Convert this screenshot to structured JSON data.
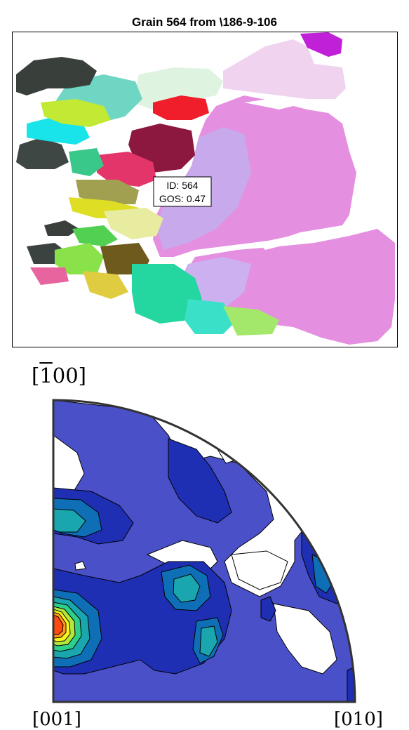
{
  "title": "Grain 564 from \\186-9-106",
  "map": {
    "annotation_id": "ID: 564",
    "annotation_gos": "GOS: 0.47"
  },
  "pole_figure": {
    "label_top": "[̅100]",
    "label_top_display": "[100]",
    "label_bottom_left": "[001]",
    "label_bottom_right": "[010]"
  },
  "colors": {
    "level0": "#ffffff",
    "level1": "#4a50c8",
    "level2": "#1f2fb4",
    "level3": "#0f6fb6",
    "level4": "#1aa6ae",
    "level5": "#2ecf8a",
    "level6": "#b3e83a",
    "level7": "#f7f71b",
    "level8": "#ff9a1a",
    "level9": "#ff4a10"
  },
  "chart_data": [
    {
      "type": "heatmap",
      "title": "Grain 564 from \\186-9-106",
      "description_hidden": true,
      "annotations": [
        "ID: 564",
        "GOS: 0.47"
      ]
    },
    {
      "type": "heatmap",
      "labels": [
        "[̅100]",
        "[001]",
        "[010]"
      ],
      "levels": 9
    }
  ]
}
